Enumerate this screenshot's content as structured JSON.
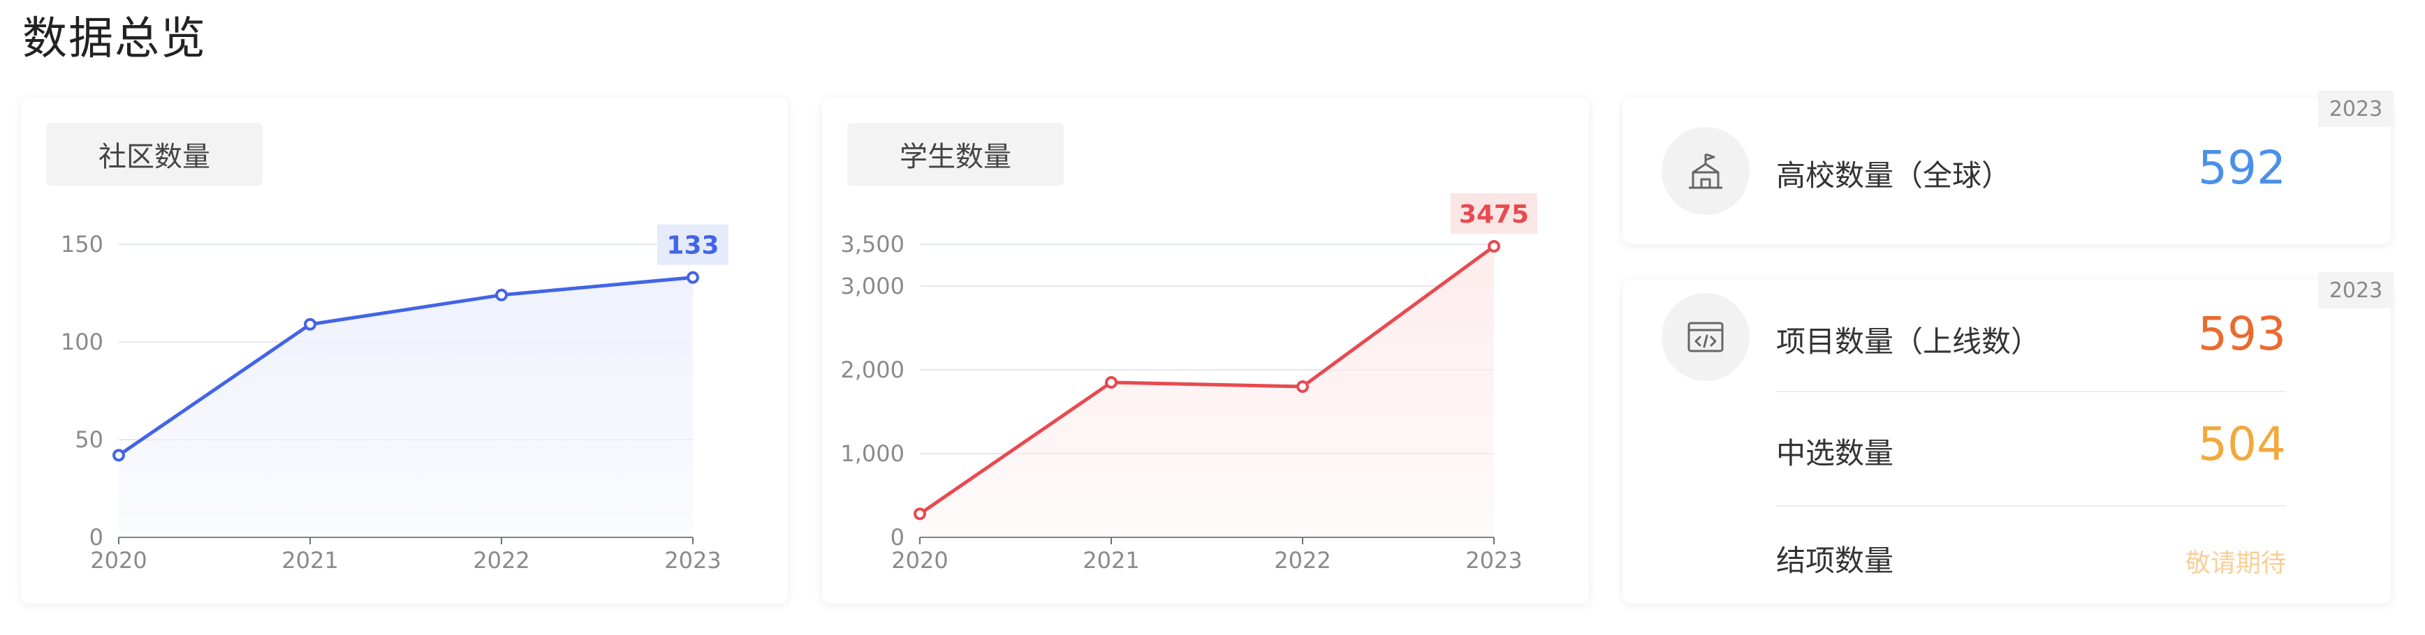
{
  "page": {
    "title": "数据总览"
  },
  "community_card": {
    "label": "社区数量",
    "line_color": "#4364e6",
    "fill_color": "#eef1fc",
    "highlight_bg": "#e6ebfb"
  },
  "students_card": {
    "label": "学生数量",
    "line_color": "#e84a50",
    "fill_color": "#fdecec",
    "highlight_bg": "#fbe6e6"
  },
  "chart_data": [
    {
      "type": "area",
      "title": "社区数量",
      "categories": [
        "2020",
        "2021",
        "2022",
        "2023"
      ],
      "values": [
        42,
        109,
        124,
        133
      ],
      "yticks": [
        "0",
        "50",
        "100",
        "150"
      ],
      "ylim": [
        0,
        150
      ],
      "highlight": {
        "label": "133"
      },
      "grid": true
    },
    {
      "type": "area",
      "title": "学生数量",
      "categories": [
        "2020",
        "2021",
        "2022",
        "2023"
      ],
      "values": [
        280,
        1850,
        1800,
        3475
      ],
      "yticks": [
        "0",
        "1,000",
        "2,000",
        "3,000",
        "3,500"
      ],
      "ytick_values": [
        0,
        1000,
        2000,
        3000,
        3500
      ],
      "ylim": [
        0,
        3500
      ],
      "highlight": {
        "label": "3475"
      },
      "grid": true
    }
  ],
  "universities": {
    "year": "2023",
    "label": "高校数量（全球）",
    "value": "592",
    "value_color": "#4a90e8",
    "icon": "campus-building-icon"
  },
  "projects": {
    "year": "2023",
    "icon": "code-window-icon",
    "rows": [
      {
        "label": "项目数量（上线数）",
        "value": "593",
        "color": "#ea6a2f"
      },
      {
        "label": "中选数量",
        "value": "504",
        "color": "#f2a93b"
      },
      {
        "label": "结项数量",
        "value": "敬请期待",
        "color": "#f7cf98"
      }
    ]
  }
}
